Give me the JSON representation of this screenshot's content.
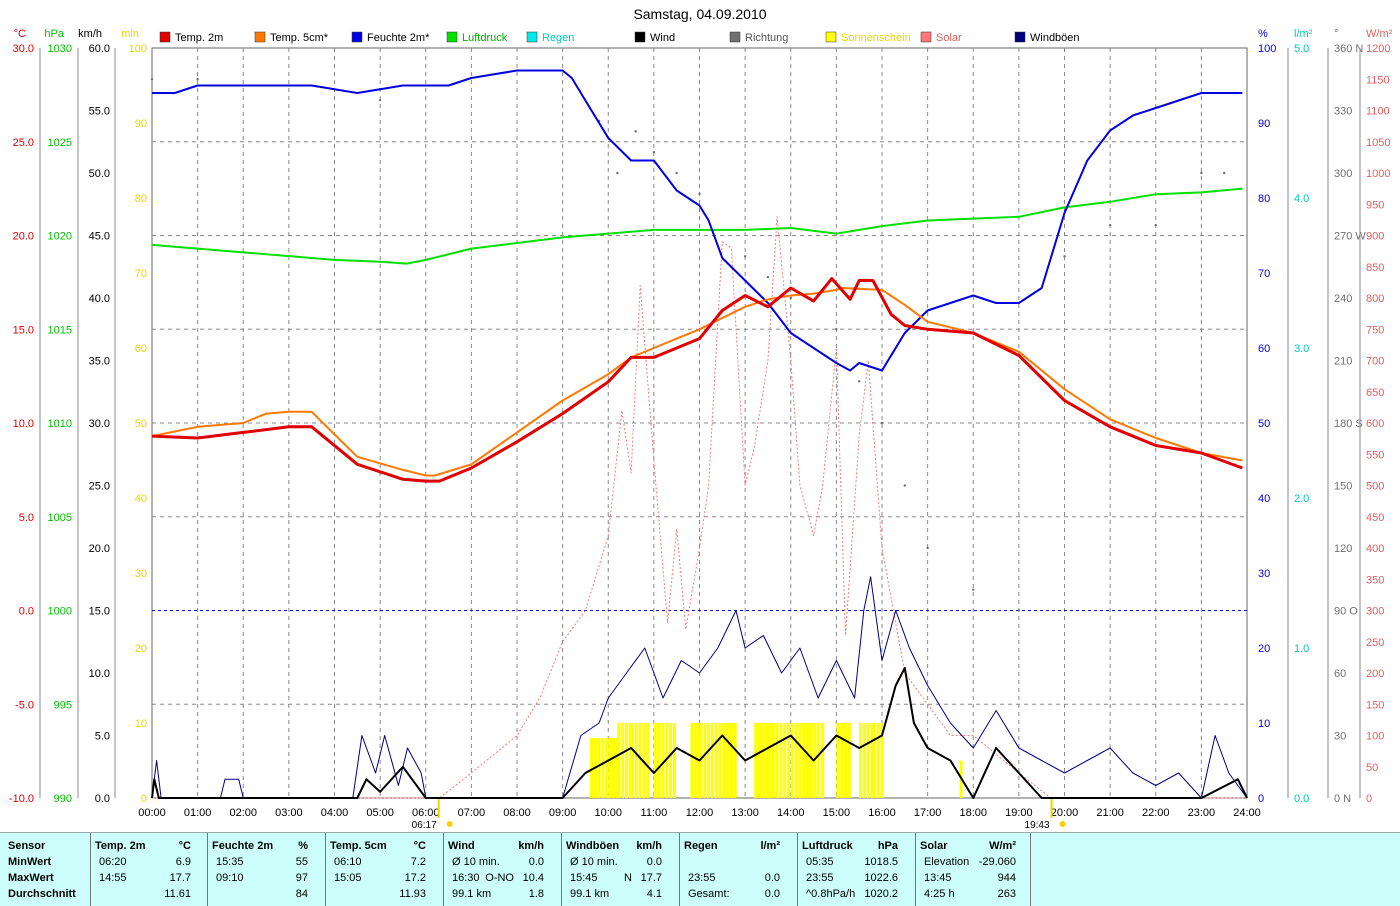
{
  "title": "Samstag, 04.09.2010",
  "colors": {
    "temp2m": "#e00000",
    "temp5cm": "#ff7800",
    "humidity": "#0000e0",
    "pressure": "#00e000",
    "rain": "#00e8e8",
    "wind": "#000000",
    "direction": "#707070",
    "sunshine": "#ffff00",
    "solar": "#ff7878",
    "gust": "#000080",
    "grid": "#888888"
  },
  "legend": [
    {
      "key": "temp2m",
      "label": "Temp. 2m"
    },
    {
      "key": "temp5cm",
      "label": "Temp. 5cm*"
    },
    {
      "key": "humidity",
      "label": "Feuchte 2m*"
    },
    {
      "key": "pressure",
      "label": "Luftdruck"
    },
    {
      "key": "rain",
      "label": "Regen"
    },
    {
      "key": "wind",
      "label": "Wind"
    },
    {
      "key": "direction",
      "label": "Richtung"
    },
    {
      "key": "sunshine",
      "label": "Sonnenschein"
    },
    {
      "key": "solar",
      "label": "Solar"
    },
    {
      "key": "gust",
      "label": "Windböen"
    }
  ],
  "axes": {
    "temp": {
      "unit": "°C",
      "ticks": [
        "30.0",
        "25.0",
        "20.0",
        "15.0",
        "10.0",
        "5.0",
        "0.0",
        "-5.0",
        "-10.0"
      ],
      "range": [
        -10,
        30
      ]
    },
    "pressure": {
      "unit": "hPa",
      "ticks": [
        "1030",
        "1025",
        "1020",
        "1015",
        "1010",
        "1005",
        "1000",
        "995",
        "990"
      ],
      "range": [
        990,
        1030
      ]
    },
    "wind": {
      "unit": "km/h",
      "ticks": [
        "60.0",
        "55.0",
        "50.0",
        "45.0",
        "40.0",
        "35.0",
        "30.0",
        "25.0",
        "20.0",
        "15.0",
        "10.0",
        "5.0",
        "0.0"
      ],
      "range": [
        0,
        60
      ]
    },
    "sun": {
      "unit": "min",
      "ticks": [
        "100",
        "90",
        "80",
        "70",
        "60",
        "50",
        "40",
        "30",
        "20",
        "10",
        "0"
      ],
      "range": [
        0,
        100
      ]
    },
    "humidity": {
      "unit": "%",
      "ticks": [
        "100",
        "90",
        "80",
        "70",
        "60",
        "50",
        "40",
        "30",
        "20",
        "10",
        "0"
      ],
      "range": [
        0,
        100
      ]
    },
    "rain": {
      "unit": "l/m²",
      "ticks": [
        "5.0",
        "4.0",
        "3.0",
        "2.0",
        "1.0",
        "0.0"
      ],
      "range": [
        0,
        5
      ]
    },
    "direction": {
      "unit": "°",
      "ticks": [
        "360 N",
        "330",
        "300",
        "270 W",
        "240",
        "210",
        "180 S",
        "150",
        "120",
        "90 O",
        "60",
        "30",
        "0 N"
      ],
      "range": [
        0,
        360
      ]
    },
    "solar": {
      "unit": "W/m²",
      "ticks": [
        "1200",
        "1150",
        "1100",
        "1050",
        "1000",
        "950",
        "900",
        "850",
        "800",
        "750",
        "700",
        "650",
        "600",
        "550",
        "500",
        "450",
        "400",
        "350",
        "300",
        "250",
        "200",
        "150",
        "100",
        "50",
        "0"
      ],
      "range": [
        0,
        1200
      ]
    },
    "time": {
      "ticks": [
        "00:00",
        "01:00",
        "02:00",
        "03:00",
        "04:00",
        "05:00",
        "06:00",
        "07:00",
        "08:00",
        "09:00",
        "10:00",
        "11:00",
        "12:00",
        "13:00",
        "14:00",
        "15:00",
        "16:00",
        "17:00",
        "18:00",
        "19:00",
        "20:00",
        "21:00",
        "22:00",
        "23:00",
        "24:00"
      ]
    },
    "sunrise": "06:17",
    "sunset": "19:43"
  },
  "chart_data": {
    "type": "line",
    "x_unit": "hour of day",
    "series": [
      {
        "name": "Temp. 2m",
        "unit": "°C",
        "x": [
          0,
          1,
          2,
          3,
          3.5,
          4.5,
          5.5,
          6,
          6.3,
          7,
          8,
          9,
          10,
          10.5,
          11,
          11.5,
          12,
          12.5,
          13,
          13.5,
          14,
          14.5,
          14.9,
          15.3,
          15.5,
          15.8,
          16.2,
          16.5,
          17,
          18,
          19,
          20,
          21,
          22,
          23,
          23.9
        ],
        "y": [
          9.3,
          9.2,
          9.5,
          9.8,
          9.8,
          7.8,
          7.0,
          6.9,
          6.9,
          7.6,
          9.0,
          10.5,
          12.2,
          13.5,
          13.5,
          14.0,
          14.5,
          16.0,
          16.8,
          16.2,
          17.2,
          16.5,
          17.7,
          16.6,
          17.6,
          17.6,
          15.8,
          15.2,
          15.0,
          14.8,
          13.6,
          11.2,
          9.8,
          8.8,
          8.4,
          7.6
        ]
      },
      {
        "name": "Temp. 5cm*",
        "unit": "°C",
        "x": [
          0,
          1,
          2,
          2.5,
          3,
          3.5,
          4.5,
          5.5,
          6,
          6.2,
          7,
          8,
          9,
          10,
          10.5,
          11,
          11.5,
          12,
          12.5,
          13,
          13.5,
          14,
          14.5,
          15,
          15.1,
          16,
          16.5,
          17,
          18,
          19,
          20,
          21,
          22,
          23,
          23.9
        ],
        "y": [
          9.3,
          9.8,
          10.0,
          10.5,
          10.6,
          10.6,
          8.2,
          7.5,
          7.2,
          7.2,
          7.8,
          9.5,
          11.2,
          12.6,
          13.5,
          14.0,
          14.5,
          15.0,
          15.6,
          16.2,
          16.6,
          16.8,
          16.9,
          17.1,
          17.2,
          17.1,
          16.3,
          15.4,
          14.8,
          13.8,
          11.8,
          10.2,
          9.2,
          8.4,
          8.0
        ]
      },
      {
        "name": "Feuchte 2m*",
        "unit": "%",
        "x": [
          0,
          0.5,
          1,
          2,
          3,
          3.5,
          4.5,
          5.5,
          6,
          6.5,
          7,
          8,
          9,
          9.2,
          9.5,
          10,
          10.5,
          11,
          11.5,
          12,
          12.2,
          12.5,
          13,
          13.5,
          14,
          14.5,
          15,
          15.3,
          15.5,
          16,
          16.5,
          17,
          17.5,
          18,
          18.5,
          19,
          19.5,
          20,
          20.5,
          21,
          21.5,
          22,
          22.5,
          23,
          23.5,
          23.9
        ],
        "y": [
          94,
          94,
          95,
          95,
          95,
          95,
          94,
          95,
          95,
          95,
          96,
          97,
          97,
          96,
          93,
          88,
          85,
          85,
          81,
          79,
          77,
          72,
          69,
          66,
          62,
          60,
          58,
          57,
          58,
          57,
          62,
          65,
          66,
          67,
          66,
          66,
          68,
          78,
          85,
          89,
          91,
          92,
          93,
          94,
          94,
          94
        ]
      },
      {
        "name": "Luftdruck",
        "unit": "hPa",
        "x": [
          0,
          1,
          2,
          3,
          4,
          5,
          5.58,
          6,
          7,
          8,
          9,
          10,
          11,
          12,
          13,
          14,
          15,
          15.5,
          16,
          17,
          18,
          19,
          20,
          21,
          22,
          23,
          23.9
        ],
        "y": [
          1019.5,
          1019.3,
          1019.1,
          1018.9,
          1018.7,
          1018.6,
          1018.5,
          1018.7,
          1019.3,
          1019.6,
          1019.9,
          1020.1,
          1020.3,
          1020.3,
          1020.3,
          1020.4,
          1020.1,
          1020.3,
          1020.5,
          1020.8,
          1020.9,
          1021.0,
          1021.5,
          1021.8,
          1022.2,
          1022.3,
          1022.5
        ]
      },
      {
        "name": "Wind",
        "unit": "km/h",
        "x": [
          0,
          0.05,
          0.15,
          0.25,
          4.5,
          4.7,
          5,
          5.5,
          6,
          9,
          9.5,
          10,
          10.5,
          11,
          11.5,
          12,
          12.5,
          13,
          13.5,
          14,
          14.5,
          15,
          15.5,
          16,
          16.3,
          16.5,
          16.7,
          17,
          17.5,
          18,
          18.5,
          19,
          19.5,
          20,
          21,
          22,
          23,
          23.8,
          24
        ],
        "y": [
          0,
          1.5,
          0,
          0,
          0,
          1.5,
          0.5,
          2.5,
          0,
          0,
          2,
          3,
          4,
          2,
          4,
          3,
          5,
          3,
          4,
          5,
          3,
          5,
          4,
          5,
          9,
          10.4,
          6,
          4,
          3,
          0,
          4,
          2,
          0,
          0,
          0,
          0,
          0,
          1.5,
          0
        ]
      },
      {
        "name": "Windböen",
        "unit": "km/h",
        "x": [
          0,
          0.1,
          0.2,
          0.3,
          1.5,
          1.6,
          1.9,
          2,
          4.4,
          4.6,
          4.9,
          5.1,
          5.4,
          5.6,
          5.9,
          6,
          9,
          9.4,
          9.8,
          10,
          10.4,
          10.8,
          11.2,
          11.6,
          12,
          12.4,
          12.8,
          13,
          13.4,
          13.8,
          14.2,
          14.6,
          15,
          15.4,
          15.6,
          15.75,
          16,
          16.3,
          16.6,
          17,
          17.5,
          18,
          18.5,
          19,
          19.5,
          20,
          20.5,
          21,
          21.5,
          22,
          22.5,
          23,
          23.3,
          23.6,
          24
        ],
        "y": [
          0,
          3,
          0,
          0,
          0,
          1.5,
          1.5,
          0,
          0,
          5,
          2,
          5,
          1,
          4,
          2,
          0,
          0,
          5,
          6,
          8,
          10,
          12,
          8,
          11,
          10,
          12,
          15,
          12,
          13,
          10,
          12,
          8,
          11,
          8,
          15,
          17.7,
          11,
          15,
          12,
          9,
          6,
          4,
          7,
          4,
          3,
          2,
          3,
          4,
          2,
          1,
          2,
          0,
          5,
          2,
          0
        ]
      },
      {
        "name": "Solar",
        "unit": "W/m²",
        "x": [
          0,
          6.3,
          7,
          8,
          8.5,
          9,
          9.5,
          10,
          10.3,
          10.5,
          10.7,
          11,
          11.3,
          11.5,
          11.7,
          12,
          12.2,
          12.5,
          12.7,
          13,
          13.2,
          13.5,
          13.7,
          14,
          14.2,
          14.5,
          14.7,
          15,
          15.2,
          15.5,
          15.7,
          16,
          16.5,
          17,
          17.5,
          18,
          18.5,
          19,
          19.7,
          24
        ],
        "y": [
          0,
          0,
          40,
          100,
          160,
          250,
          300,
          420,
          620,
          520,
          820,
          540,
          280,
          430,
          270,
          400,
          500,
          890,
          880,
          500,
          560,
          700,
          930,
          700,
          500,
          420,
          500,
          720,
          260,
          580,
          700,
          400,
          200,
          150,
          100,
          100,
          70,
          40,
          0,
          0
        ]
      },
      {
        "name": "Sonnenschein",
        "unit": "min",
        "x": [
          9.2,
          9.6,
          10,
          10.2,
          10.5,
          10.9,
          11.0,
          11.5,
          11.8,
          12,
          12.5,
          12.8,
          13.2,
          13.5,
          14,
          14.5,
          14.7,
          15,
          15.3,
          15.5,
          15.8,
          16.0,
          17.7,
          17.8
        ],
        "y": [
          0,
          8,
          8,
          10,
          10,
          0,
          10,
          0,
          10,
          10,
          10,
          0,
          10,
          10,
          10,
          10,
          0,
          10,
          0,
          10,
          10,
          0,
          5,
          0
        ]
      },
      {
        "name": "Richtung",
        "unit": "°",
        "x": [
          0,
          1,
          5,
          9.8,
          10.2,
          10.6,
          11,
          11.5,
          12,
          13,
          13.5,
          14,
          15,
          15.5,
          16,
          16.5,
          17,
          18,
          19,
          20,
          21,
          22,
          23,
          23.5
        ],
        "y": [
          345,
          345,
          335,
          325,
          300,
          320,
          310,
          300,
          290,
          260,
          250,
          240,
          225,
          200,
          180,
          150,
          120,
          100,
          90,
          260,
          275,
          275,
          300,
          300
        ]
      }
    ],
    "stats": {
      "headers": [
        {
          "label": "Sensor",
          "unit": ""
        },
        {
          "label": "Temp. 2m",
          "unit": "°C"
        },
        {
          "label": "Feuchte 2m",
          "unit": "%"
        },
        {
          "label": "Temp. 5cm",
          "unit": "°C"
        },
        {
          "label": "Wind",
          "unit": "km/h"
        },
        {
          "label": "Windböen",
          "unit": "km/h"
        },
        {
          "label": "Regen",
          "unit": "l/m²"
        },
        {
          "label": "Luftdruck",
          "unit": "hPa"
        },
        {
          "label": "Solar",
          "unit": "W/m²"
        }
      ],
      "rows": [
        {
          "label": "MinWert",
          "cells": [
            [
              "06:20",
              "6.9"
            ],
            [
              "15:35",
              "55"
            ],
            [
              "06:10",
              "7.2"
            ],
            [
              "Ø 10 min.",
              "",
              "0.0"
            ],
            [
              "Ø 10 min.",
              "",
              "0.0"
            ],
            [
              "",
              ""
            ],
            [
              "05:35",
              "1018.5"
            ],
            [
              "Elevation",
              "-29.060"
            ]
          ]
        },
        {
          "label": "MaxWert",
          "cells": [
            [
              "14:55",
              "17.7"
            ],
            [
              "09:10",
              "97"
            ],
            [
              "15:05",
              "17.2"
            ],
            [
              "16:30",
              "O-NO",
              "10.4"
            ],
            [
              "15:45",
              "N",
              "17.7"
            ],
            [
              "23:55",
              "0.0"
            ],
            [
              "23:55",
              "1022.6"
            ],
            [
              "13:45",
              "944"
            ]
          ]
        },
        {
          "label": "Durchschnitt",
          "cells": [
            [
              "",
              "11.61"
            ],
            [
              "",
              "84"
            ],
            [
              "",
              "11.93"
            ],
            [
              "99.1 km",
              "",
              "1.8"
            ],
            [
              "99.1 km",
              "",
              "4.1"
            ],
            [
              "Gesamt:",
              "0.0"
            ],
            [
              "^0.8hPa/h",
              "1020.2"
            ],
            [
              "4:25 h",
              "263"
            ]
          ]
        }
      ]
    }
  }
}
